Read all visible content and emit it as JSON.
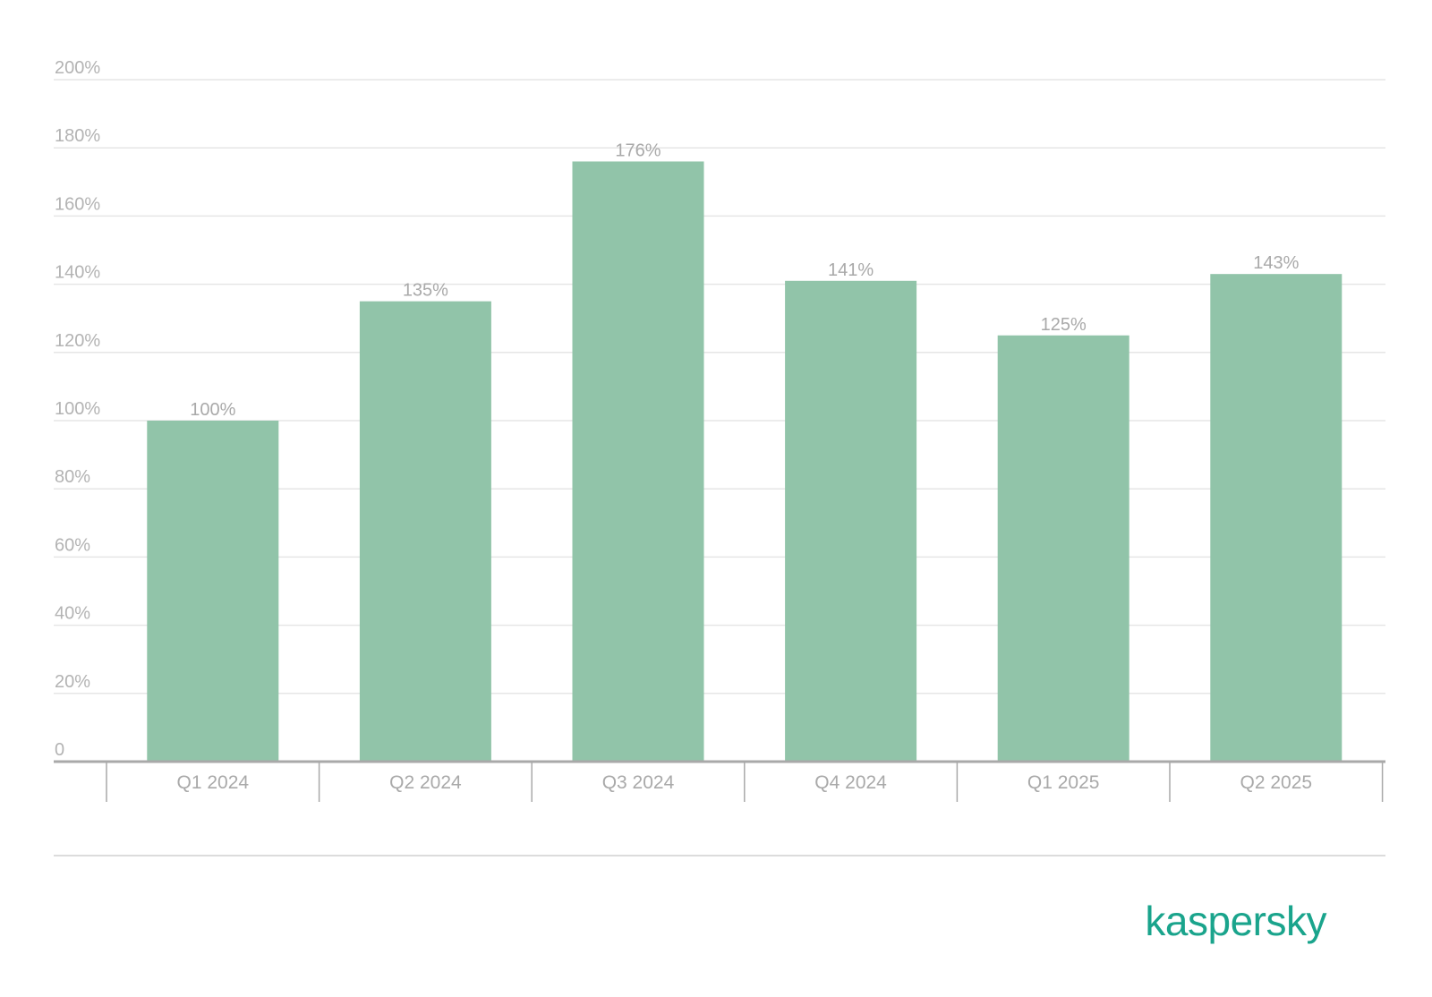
{
  "brand": {
    "logo_text": "kaspersky",
    "color": "#1aa48c"
  },
  "chart_data": {
    "type": "bar",
    "categories": [
      "Q1 2024",
      "Q2 2024",
      "Q3 2024",
      "Q4 2024",
      "Q1 2025",
      "Q2 2025"
    ],
    "values": [
      100,
      135,
      176,
      141,
      125,
      143
    ],
    "value_labels": [
      "100%",
      "135%",
      "176%",
      "141%",
      "125%",
      "143%"
    ],
    "y_ticks": [
      0,
      20,
      40,
      60,
      80,
      100,
      120,
      140,
      160,
      180,
      200
    ],
    "y_tick_labels": [
      "0",
      "20%",
      "40%",
      "60%",
      "80%",
      "100%",
      "120%",
      "140%",
      "160%",
      "180%",
      "200%"
    ],
    "ylim": [
      0,
      200
    ],
    "title": "",
    "xlabel": "",
    "ylabel": "",
    "grid": true,
    "legend": "none",
    "bar_color": "#91c4a9"
  }
}
